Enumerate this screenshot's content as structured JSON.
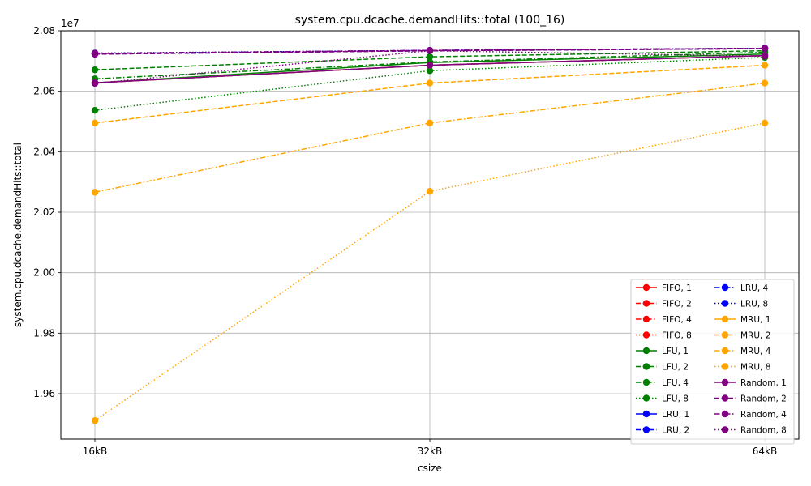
{
  "chart_data": {
    "type": "line",
    "title": "system.cpu.dcache.demandHits::total (100_16)",
    "xlabel": "csize",
    "ylabel": "system.cpu.dcache.demandHits::total",
    "categories": [
      "16kB",
      "32kB",
      "64kB"
    ],
    "y_multiplier_label": "1e7",
    "y_scale": 10000000,
    "ylim": [
      1.945,
      2.08
    ],
    "y_ticks": [
      1.96,
      1.98,
      2.0,
      2.02,
      2.04,
      2.06,
      2.08
    ],
    "y_tick_labels": [
      "1.96",
      "1.98",
      "2.00",
      "2.02",
      "2.04",
      "2.06",
      "2.08"
    ],
    "grid": true,
    "legend_position": "bottom-right",
    "legend_columns": 2,
    "series": [
      {
        "name": "FIFO, 1",
        "color": "#ff0000",
        "dash": "solid",
        "values": [
          2.0628,
          2.0686,
          2.0718
        ]
      },
      {
        "name": "FIFO, 2",
        "color": "#ff0000",
        "dash": "dashed",
        "values": [
          2.0723,
          2.0734,
          2.0741
        ]
      },
      {
        "name": "FIFO, 4",
        "color": "#ff0000",
        "dash": "dashdot",
        "values": [
          2.0725,
          2.0735,
          2.0742
        ]
      },
      {
        "name": "FIFO, 8",
        "color": "#ff0000",
        "dash": "dotted",
        "values": [
          2.0726,
          2.0735,
          2.0742
        ]
      },
      {
        "name": "LFU, 1",
        "color": "#008000",
        "dash": "solid",
        "values": [
          2.0628,
          2.0695,
          2.0723
        ]
      },
      {
        "name": "LFU, 2",
        "color": "#008000",
        "dash": "dashed",
        "values": [
          2.0671,
          2.0714,
          2.0734
        ]
      },
      {
        "name": "LFU, 4",
        "color": "#008000",
        "dash": "dashdot",
        "values": [
          2.0641,
          2.0697,
          2.0729
        ]
      },
      {
        "name": "LFU, 8",
        "color": "#008000",
        "dash": "dotted",
        "values": [
          2.0537,
          2.0668,
          2.0712
        ]
      },
      {
        "name": "LRU, 1",
        "color": "#0000ff",
        "dash": "solid",
        "values": [
          2.0628,
          2.0686,
          2.0718
        ]
      },
      {
        "name": "LRU, 2",
        "color": "#0000ff",
        "dash": "dashed",
        "values": [
          2.0723,
          2.0734,
          2.0741
        ]
      },
      {
        "name": "LRU, 4",
        "color": "#0000ff",
        "dash": "dashdot",
        "values": [
          2.0725,
          2.0735,
          2.0742
        ]
      },
      {
        "name": "LRU, 8",
        "color": "#0000ff",
        "dash": "dotted",
        "values": [
          2.0726,
          2.0735,
          2.0742
        ]
      },
      {
        "name": "MRU, 1",
        "color": "#ffa500",
        "dash": "solid",
        "values": [
          2.0628,
          2.0686,
          2.0718
        ]
      },
      {
        "name": "MRU, 2",
        "color": "#ffa500",
        "dash": "dashed",
        "values": [
          2.0495,
          2.0627,
          2.0686
        ]
      },
      {
        "name": "MRU, 4",
        "color": "#ffa500",
        "dash": "dashdot",
        "values": [
          2.0266,
          2.0495,
          2.0627
        ]
      },
      {
        "name": "MRU, 8",
        "color": "#ffa500",
        "dash": "dotted",
        "values": [
          1.9511,
          2.0269,
          2.0495
        ]
      },
      {
        "name": "Random, 1",
        "color": "#800080",
        "dash": "solid",
        "values": [
          2.0628,
          2.0686,
          2.0718
        ]
      },
      {
        "name": "Random, 2",
        "color": "#800080",
        "dash": "dashed",
        "values": [
          2.0723,
          2.0734,
          2.0741
        ]
      },
      {
        "name": "Random, 4",
        "color": "#800080",
        "dash": "dashdot",
        "values": [
          2.0725,
          2.0735,
          2.0742
        ]
      },
      {
        "name": "Random, 8",
        "color": "#800080",
        "dash": "dotted",
        "values": [
          2.0626,
          2.0734,
          2.0716
        ]
      }
    ]
  }
}
